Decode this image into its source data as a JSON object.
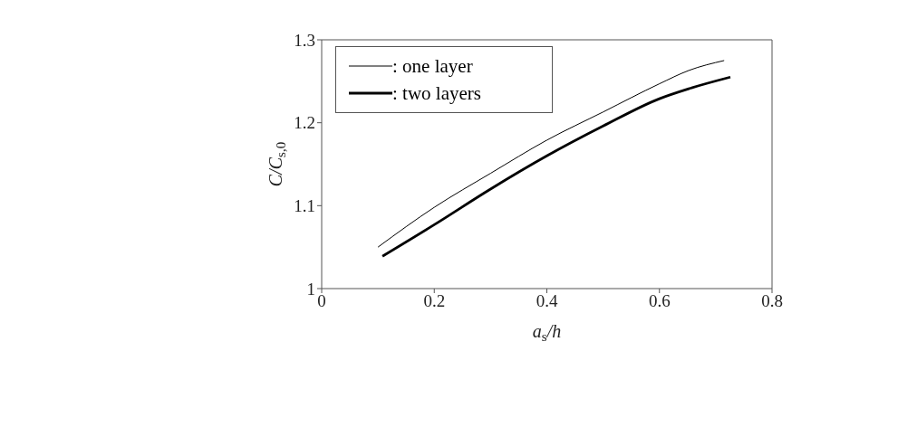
{
  "chart_data": {
    "type": "line",
    "xlabel": "a$_{s}$/h",
    "ylabel": "C/C$_{s,0}$",
    "xlim": [
      0,
      0.8
    ],
    "xticks": [
      0,
      0.2,
      0.4,
      0.6,
      0.8
    ],
    "ylim": [
      1,
      1.3
    ],
    "yticks": [
      1,
      1.1,
      1.2,
      1.3
    ],
    "legend": "top left",
    "marker": "none",
    "series": [
      {
        "name": ": one layer",
        "color": "#000000",
        "x": [
          0.1,
          0.2,
          0.3,
          0.4,
          0.5,
          0.6,
          0.652,
          0.715
        ],
        "values": [
          1.05,
          1.098,
          1.139,
          1.179,
          1.213,
          1.247,
          1.263,
          1.275
        ]
      },
      {
        "name": ": two layers",
        "color": "#000000",
        "x": [
          0.108,
          0.2,
          0.3,
          0.4,
          0.5,
          0.6,
          0.652,
          0.726
        ],
        "values": [
          1.039,
          1.077,
          1.12,
          1.16,
          1.196,
          1.229,
          1.241,
          1.255
        ]
      }
    ]
  }
}
